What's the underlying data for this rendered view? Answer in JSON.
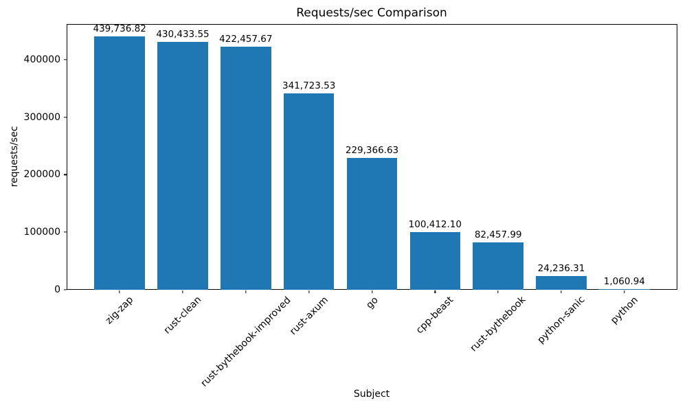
{
  "chart_data": {
    "type": "bar",
    "title": "Requests/sec Comparison",
    "xlabel": "Subject",
    "ylabel": "requests/sec",
    "categories": [
      "zig-zap",
      "rust-clean",
      "rust-bythebook-improved",
      "rust-axum",
      "go",
      "cpp-beast",
      "rust-bythebook",
      "python-sanic",
      "python"
    ],
    "values": [
      439736.82,
      430433.55,
      422457.67,
      341723.53,
      229366.63,
      100412.1,
      82457.99,
      24236.31,
      1060.94
    ],
    "value_labels": [
      "439,736.82",
      "430,433.55",
      "422,457.67",
      "341,723.53",
      "229,366.63",
      "100,412.10",
      "82,457.99",
      "24,236.31",
      "1,060.94"
    ],
    "yticks": [
      0,
      100000,
      200000,
      300000,
      400000
    ],
    "ytick_labels": [
      "0",
      "100000",
      "200000",
      "300000",
      "400000"
    ],
    "ylim": [
      0,
      461723.66
    ],
    "bar_width_fraction": 0.8,
    "bar_color": "#1f77b4",
    "axis_color": "#000000",
    "grid": false,
    "legend": null
  }
}
